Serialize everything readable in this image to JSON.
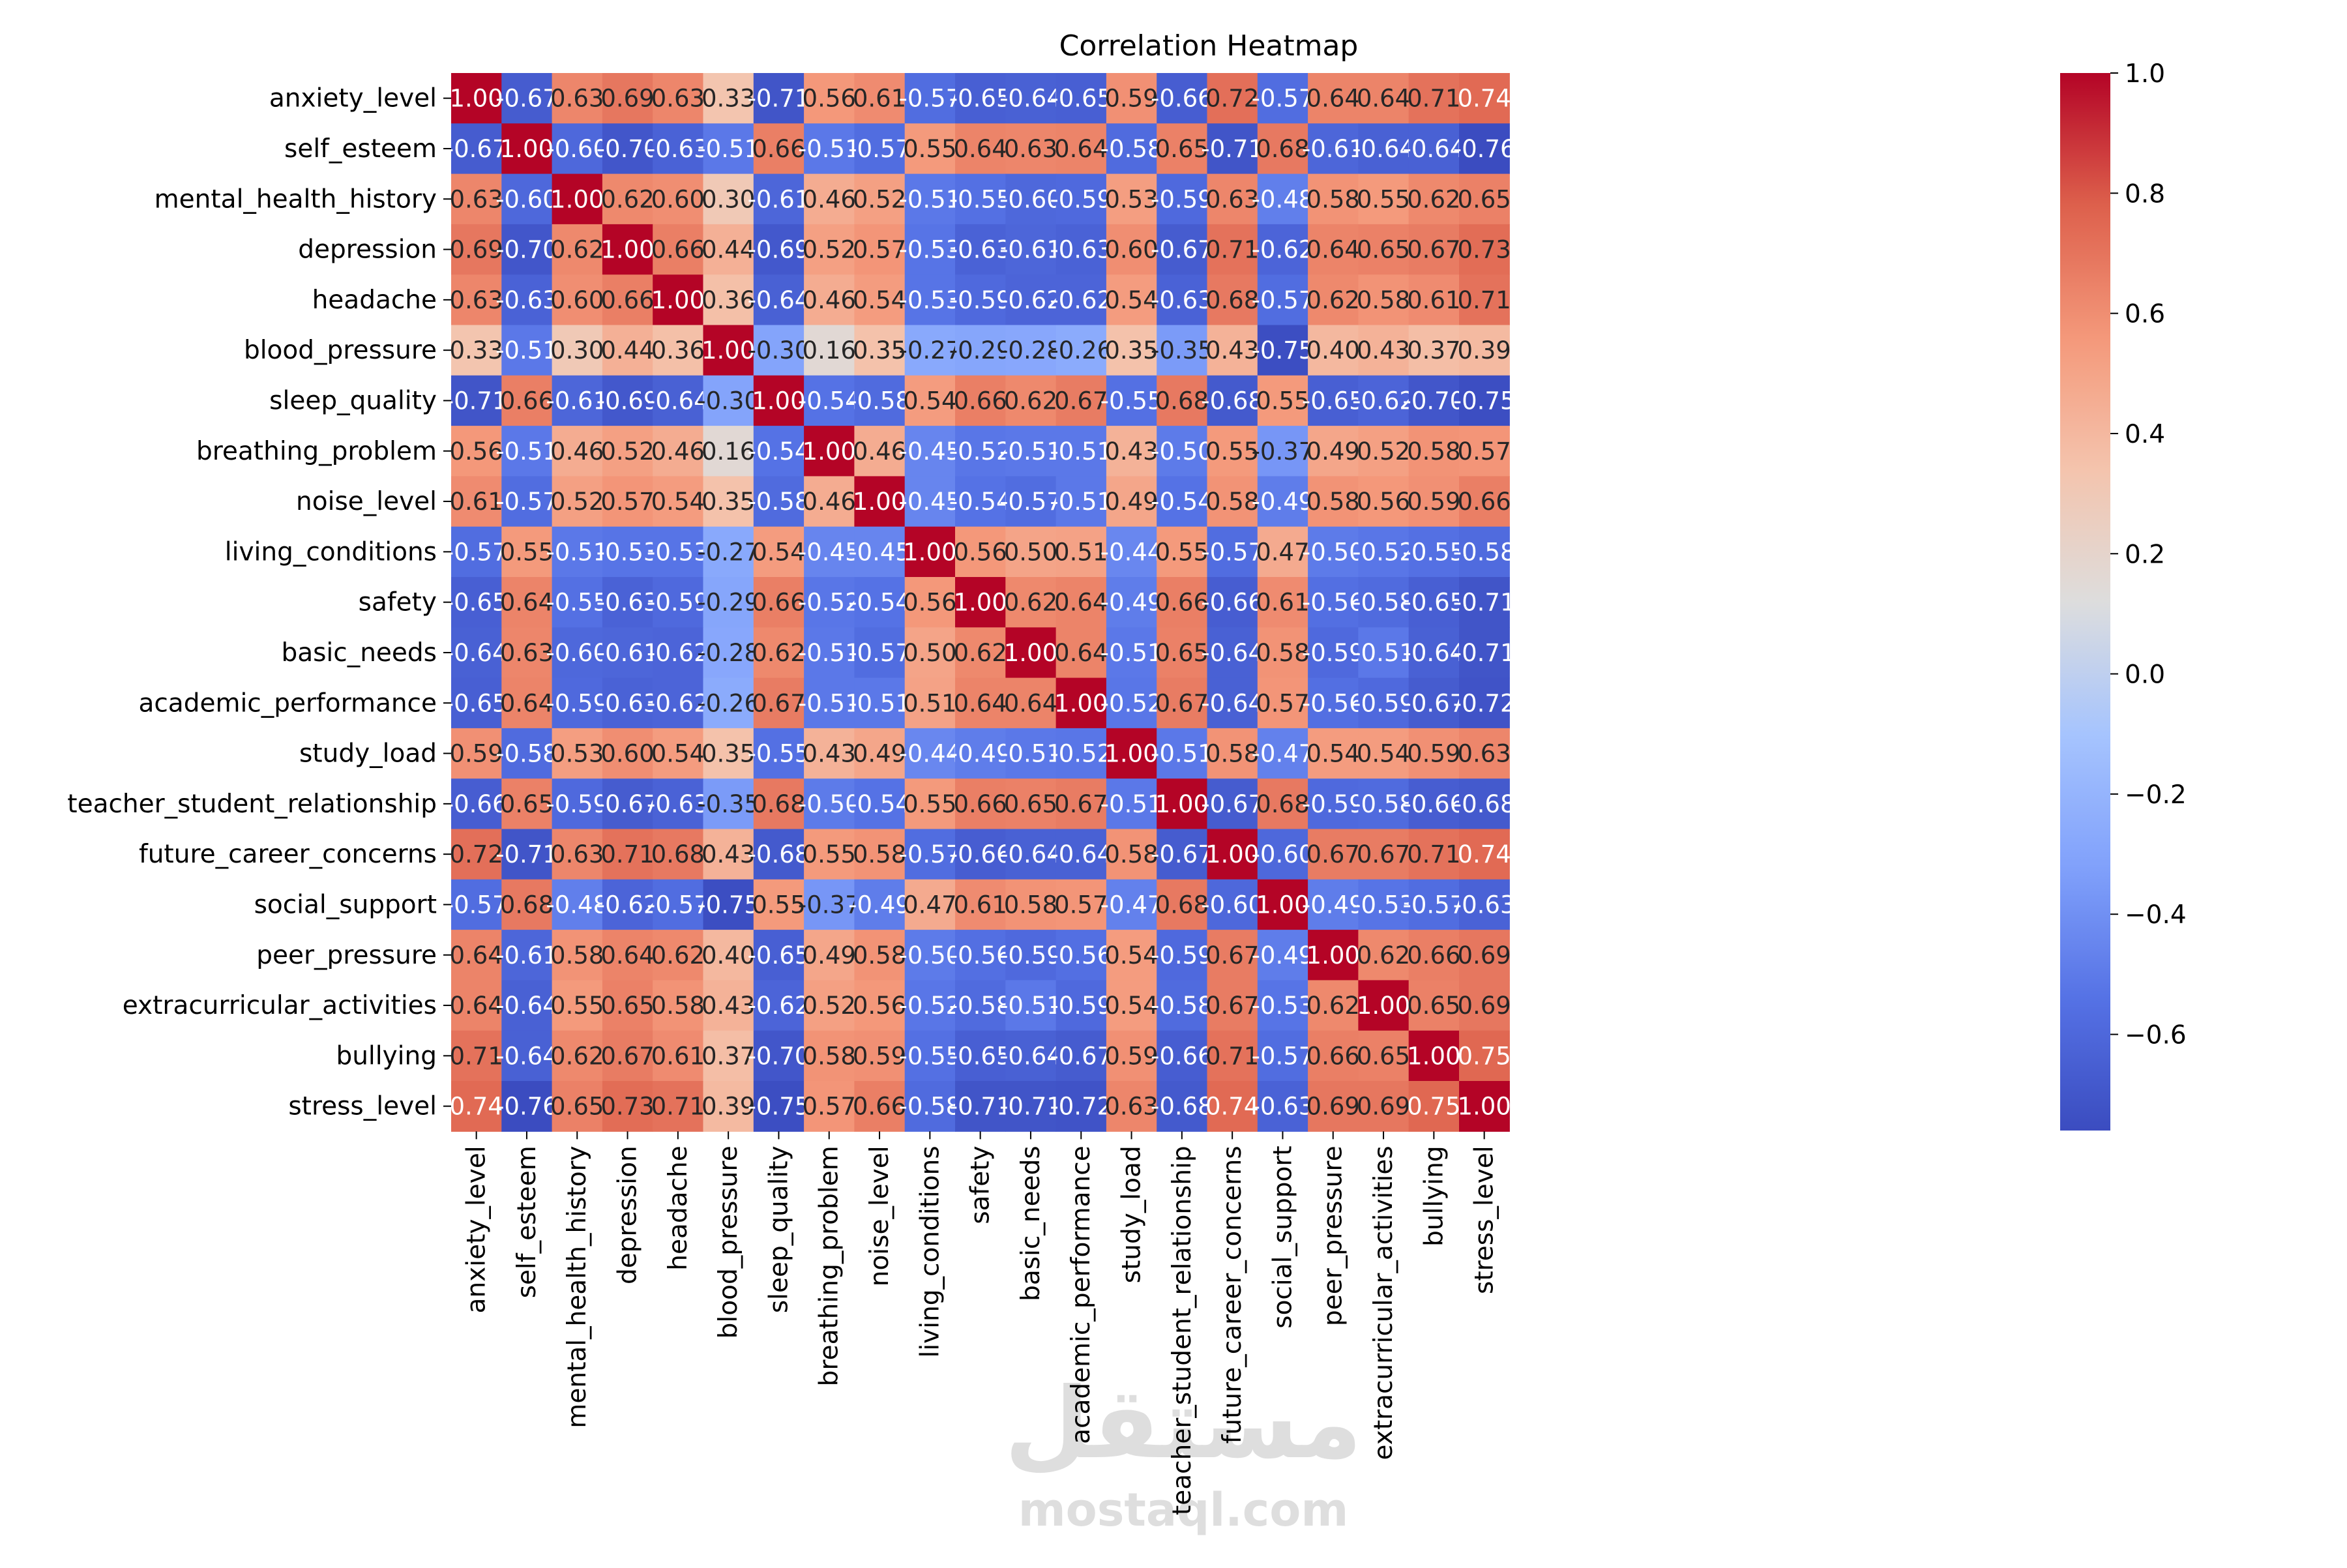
{
  "chart_data": {
    "type": "heatmap",
    "title": "Correlation Heatmap",
    "colormap": "coolwarm",
    "color_range": [
      -0.76,
      1.0
    ],
    "colorbar_ticks": [
      1.0,
      0.8,
      0.6,
      0.4,
      0.2,
      0.0,
      -0.2,
      -0.4,
      -0.6
    ],
    "colorbar_tick_labels": [
      "1.0",
      "0.8",
      "0.6",
      "0.4",
      "0.2",
      "0.0",
      "−0.2",
      "−0.4",
      "−0.6"
    ],
    "variables": [
      "anxiety_level",
      "self_esteem",
      "mental_health_history",
      "depression",
      "headache",
      "blood_pressure",
      "sleep_quality",
      "breathing_problem",
      "noise_level",
      "living_conditions",
      "safety",
      "basic_needs",
      "academic_performance",
      "study_load",
      "teacher_student_relationship",
      "future_career_concerns",
      "social_support",
      "peer_pressure",
      "extracurricular_activities",
      "bullying",
      "stress_level"
    ],
    "values": [
      [
        1.0,
        -0.67,
        0.63,
        0.69,
        0.63,
        0.33,
        -0.71,
        0.56,
        0.61,
        -0.57,
        -0.65,
        -0.64,
        -0.65,
        0.59,
        -0.66,
        0.72,
        -0.57,
        0.64,
        0.64,
        0.71,
        0.74
      ],
      [
        -0.67,
        1.0,
        -0.6,
        -0.7,
        -0.63,
        -0.51,
        0.66,
        -0.51,
        -0.57,
        0.55,
        0.64,
        0.63,
        0.64,
        -0.58,
        0.65,
        -0.71,
        0.68,
        -0.61,
        -0.64,
        -0.64,
        -0.76
      ],
      [
        0.63,
        -0.6,
        1.0,
        0.62,
        0.6,
        0.3,
        -0.61,
        0.46,
        0.52,
        -0.51,
        -0.55,
        -0.6,
        -0.59,
        0.53,
        -0.59,
        0.63,
        -0.48,
        0.58,
        0.55,
        0.62,
        0.65
      ],
      [
        0.69,
        -0.7,
        0.62,
        1.0,
        0.66,
        0.44,
        -0.69,
        0.52,
        0.57,
        -0.53,
        -0.63,
        -0.61,
        -0.63,
        0.6,
        -0.67,
        0.71,
        -0.62,
        0.64,
        0.65,
        0.67,
        0.73
      ],
      [
        0.63,
        -0.63,
        0.6,
        0.66,
        1.0,
        0.36,
        -0.64,
        0.46,
        0.54,
        -0.53,
        -0.59,
        -0.62,
        -0.62,
        0.54,
        -0.63,
        0.68,
        -0.57,
        0.62,
        0.58,
        0.61,
        0.71
      ],
      [
        0.33,
        -0.51,
        0.3,
        0.44,
        0.36,
        1.0,
        -0.3,
        0.16,
        0.35,
        -0.27,
        -0.29,
        -0.28,
        -0.26,
        0.35,
        -0.35,
        0.43,
        -0.75,
        0.4,
        0.43,
        0.37,
        0.39
      ],
      [
        -0.71,
        0.66,
        -0.61,
        -0.69,
        -0.64,
        -0.3,
        1.0,
        -0.54,
        -0.58,
        0.54,
        0.66,
        0.62,
        0.67,
        -0.55,
        0.68,
        -0.68,
        0.55,
        -0.65,
        -0.62,
        -0.7,
        -0.75
      ],
      [
        0.56,
        -0.51,
        0.46,
        0.52,
        0.46,
        0.16,
        -0.54,
        1.0,
        0.46,
        -0.45,
        -0.52,
        -0.51,
        -0.51,
        0.43,
        -0.5,
        0.55,
        -0.37,
        0.49,
        0.52,
        0.58,
        0.57
      ],
      [
        0.61,
        -0.57,
        0.52,
        0.57,
        0.54,
        0.35,
        -0.58,
        0.46,
        1.0,
        -0.45,
        -0.54,
        -0.57,
        -0.51,
        0.49,
        -0.54,
        0.58,
        -0.49,
        0.58,
        0.56,
        0.59,
        0.66
      ],
      [
        -0.57,
        0.55,
        -0.51,
        -0.53,
        -0.53,
        -0.27,
        0.54,
        -0.45,
        -0.45,
        1.0,
        0.56,
        0.5,
        0.51,
        -0.44,
        0.55,
        -0.57,
        0.47,
        -0.5,
        -0.52,
        -0.55,
        -0.58
      ],
      [
        -0.65,
        0.64,
        -0.55,
        -0.63,
        -0.59,
        -0.29,
        0.66,
        -0.52,
        -0.54,
        0.56,
        1.0,
        0.62,
        0.64,
        -0.49,
        0.66,
        -0.66,
        0.61,
        -0.56,
        -0.58,
        -0.65,
        -0.71
      ],
      [
        -0.64,
        0.63,
        -0.6,
        -0.61,
        -0.62,
        -0.28,
        0.62,
        -0.51,
        -0.57,
        0.5,
        0.62,
        1.0,
        0.64,
        -0.51,
        0.65,
        -0.64,
        0.58,
        -0.59,
        -0.51,
        -0.64,
        -0.71
      ],
      [
        -0.65,
        0.64,
        -0.59,
        -0.63,
        -0.62,
        -0.26,
        0.67,
        -0.51,
        -0.51,
        0.51,
        0.64,
        0.64,
        1.0,
        -0.52,
        0.67,
        -0.64,
        0.57,
        -0.56,
        -0.59,
        -0.67,
        -0.72
      ],
      [
        0.59,
        -0.58,
        0.53,
        0.6,
        0.54,
        0.35,
        -0.55,
        0.43,
        0.49,
        -0.44,
        -0.49,
        -0.51,
        -0.52,
        1.0,
        -0.51,
        0.58,
        -0.47,
        0.54,
        0.54,
        0.59,
        0.63
      ],
      [
        -0.66,
        0.65,
        -0.59,
        -0.67,
        -0.63,
        -0.35,
        0.68,
        -0.5,
        -0.54,
        0.55,
        0.66,
        0.65,
        0.67,
        -0.51,
        1.0,
        -0.67,
        0.68,
        -0.59,
        -0.58,
        -0.66,
        -0.68
      ],
      [
        0.72,
        -0.71,
        0.63,
        0.71,
        0.68,
        0.43,
        -0.68,
        0.55,
        0.58,
        -0.57,
        -0.66,
        -0.64,
        -0.64,
        0.58,
        -0.67,
        1.0,
        -0.6,
        0.67,
        0.67,
        0.71,
        0.74
      ],
      [
        -0.57,
        0.68,
        -0.48,
        -0.62,
        -0.57,
        -0.75,
        0.55,
        -0.37,
        -0.49,
        0.47,
        0.61,
        0.58,
        0.57,
        -0.47,
        0.68,
        -0.6,
        1.0,
        -0.49,
        -0.53,
        -0.57,
        -0.63
      ],
      [
        0.64,
        -0.61,
        0.58,
        0.64,
        0.62,
        0.4,
        -0.65,
        0.49,
        0.58,
        -0.5,
        -0.56,
        -0.59,
        -0.56,
        0.54,
        -0.59,
        0.67,
        -0.49,
        1.0,
        0.62,
        0.66,
        0.69
      ],
      [
        0.64,
        -0.64,
        0.55,
        0.65,
        0.58,
        0.43,
        -0.62,
        0.52,
        0.56,
        -0.52,
        -0.58,
        -0.51,
        -0.59,
        0.54,
        -0.58,
        0.67,
        -0.53,
        0.62,
        1.0,
        0.65,
        0.69
      ],
      [
        0.71,
        -0.64,
        0.62,
        0.67,
        0.61,
        0.37,
        -0.7,
        0.58,
        0.59,
        -0.55,
        -0.65,
        -0.64,
        -0.67,
        0.59,
        -0.66,
        0.71,
        -0.57,
        0.66,
        0.65,
        1.0,
        0.75
      ],
      [
        0.74,
        -0.76,
        0.65,
        0.73,
        0.71,
        0.39,
        -0.75,
        0.57,
        0.66,
        -0.58,
        -0.71,
        -0.71,
        -0.72,
        0.63,
        -0.68,
        0.74,
        -0.63,
        0.69,
        0.69,
        0.75,
        1.0
      ]
    ]
  },
  "watermark": {
    "logo_text": "مستقل",
    "url_text": "mostaql.com"
  }
}
